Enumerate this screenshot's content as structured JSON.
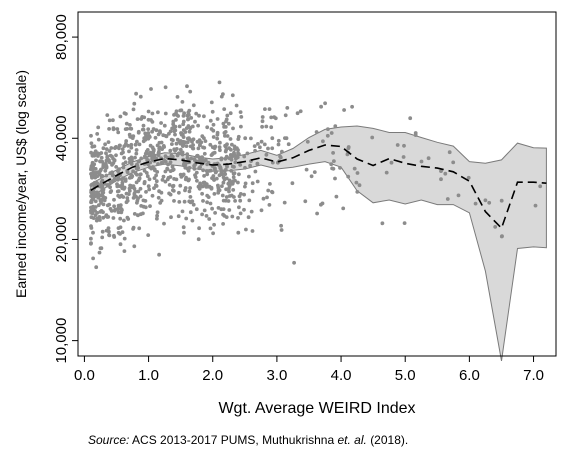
{
  "chart_data": {
    "type": "scatter",
    "xlabel": "Wgt. Average WEIRD Index",
    "ylabel": "Earned income/year, US$ (log scale)",
    "x_ticks": [
      "0.0",
      "1.0",
      "2.0",
      "3.0",
      "4.0",
      "5.0",
      "6.0",
      "7.0"
    ],
    "y_ticks": [
      "10,000",
      "20,000",
      "40,000",
      "80,000"
    ],
    "y_scale": "log",
    "xlim": [
      -0.1,
      7.35
    ],
    "ylim": [
      9000,
      95000
    ],
    "grid": false,
    "colors": {
      "points": "#8c8c8c",
      "band_fill": "#d9d9d9",
      "band_edge": "#7a7a7a",
      "fit_line": "#000000"
    },
    "fit_line": {
      "name": "smoothed fit",
      "x": [
        0.1,
        0.3,
        0.5,
        0.75,
        1.0,
        1.25,
        1.5,
        1.75,
        2.0,
        2.25,
        2.5,
        2.75,
        3.0,
        3.25,
        3.5,
        3.75,
        4.0,
        4.25,
        4.5,
        4.75,
        5.0,
        5.25,
        5.5,
        5.75,
        6.0,
        6.25,
        6.5,
        6.75,
        7.0,
        7.2
      ],
      "y": [
        28000,
        29500,
        31000,
        32800,
        34000,
        34800,
        34500,
        33800,
        33300,
        33500,
        34100,
        35000,
        34000,
        35000,
        36800,
        38200,
        37800,
        34700,
        33200,
        34800,
        33700,
        33000,
        32600,
        31800,
        29800,
        24200,
        21600,
        29600,
        29600,
        29400
      ]
    },
    "band": {
      "x": [
        0.1,
        0.3,
        0.5,
        0.75,
        1.0,
        1.25,
        1.5,
        1.75,
        2.0,
        2.25,
        2.5,
        2.75,
        3.0,
        3.25,
        3.5,
        3.75,
        4.0,
        4.25,
        4.5,
        4.75,
        5.0,
        5.25,
        5.5,
        5.75,
        6.0,
        6.25,
        6.5,
        6.75,
        7.0,
        7.2
      ],
      "upper": [
        29300,
        30700,
        32200,
        34000,
        35300,
        36200,
        36000,
        35200,
        34700,
        35000,
        35800,
        36800,
        35600,
        37300,
        40200,
        42500,
        43200,
        43500,
        42800,
        41600,
        41600,
        40200,
        38900,
        37900,
        34100,
        33700,
        34500,
        38700,
        37500,
        37400
      ],
      "lower": [
        26800,
        28300,
        29900,
        31600,
        32800,
        33500,
        33100,
        32400,
        31900,
        32000,
        32400,
        33300,
        32400,
        32800,
        33500,
        34100,
        32800,
        27900,
        25700,
        26200,
        25500,
        26200,
        25400,
        25400,
        24000,
        16100,
        8700,
        18800,
        19000,
        18900
      ]
    }
  },
  "source": {
    "label": "Source:",
    "text": "ACS 2013-2017 PUMS, Muthukrishna",
    "etal": "et. al.",
    "year": "(2018)."
  }
}
